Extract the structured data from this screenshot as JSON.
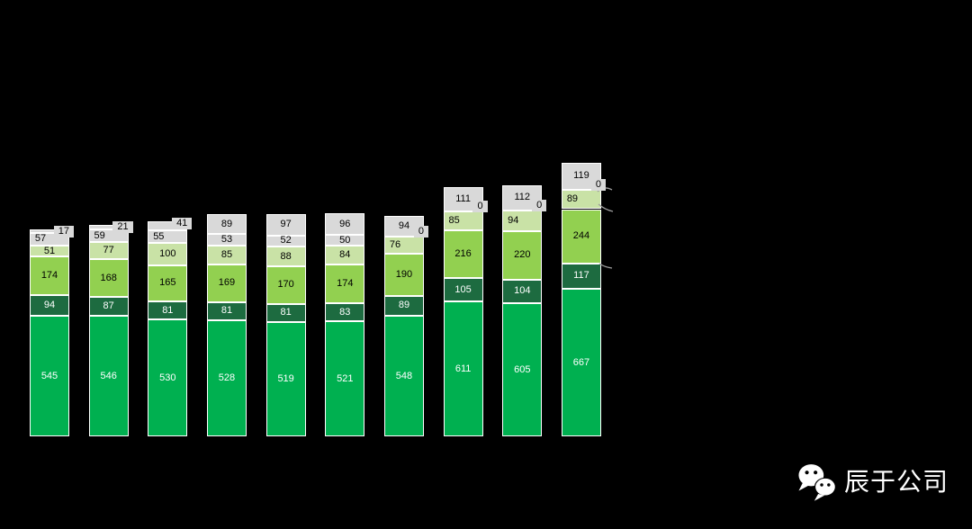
{
  "footer": {
    "brand": "辰于公司",
    "logo": "wechat-logo"
  },
  "chart_data": {
    "type": "bar",
    "stacked": true,
    "bar_count": 10,
    "background": "#000000",
    "grid": false,
    "legend_visible": false,
    "axis_labels_visible": false,
    "value_label_box_color": "#d9d9d9",
    "series_bottom_to_top": [
      {
        "name": "segment-bright-green",
        "color": "#00b050",
        "label_color": "#ffffff",
        "values": [
          545,
          546,
          530,
          528,
          519,
          521,
          548,
          611,
          605,
          667
        ]
      },
      {
        "name": "segment-dark-green",
        "color": "#1d6b40",
        "label_color": "#ffffff",
        "values": [
          94,
          87,
          81,
          81,
          81,
          83,
          89,
          105,
          104,
          117
        ]
      },
      {
        "name": "segment-mid-green",
        "color": "#92d050",
        "label_color": "#000000",
        "values": [
          174,
          168,
          165,
          169,
          170,
          174,
          190,
          216,
          220,
          244
        ]
      },
      {
        "name": "segment-pale-green",
        "color": "#c9e2a6",
        "label_color": "#000000",
        "values": [
          51,
          77,
          100,
          85,
          88,
          84,
          76,
          85,
          94,
          89
        ]
      },
      {
        "name": "segment-light-gray",
        "color": "#d9d9d9",
        "label_color": "#000000",
        "values": [
          57,
          59,
          55,
          53,
          52,
          50,
          0,
          0,
          0,
          0
        ]
      },
      {
        "name": "segment-top-gray",
        "color": "#d9d9d9",
        "label_color": "#000000",
        "values": [
          17,
          21,
          41,
          89,
          97,
          96,
          94,
          111,
          112,
          119
        ]
      }
    ]
  }
}
